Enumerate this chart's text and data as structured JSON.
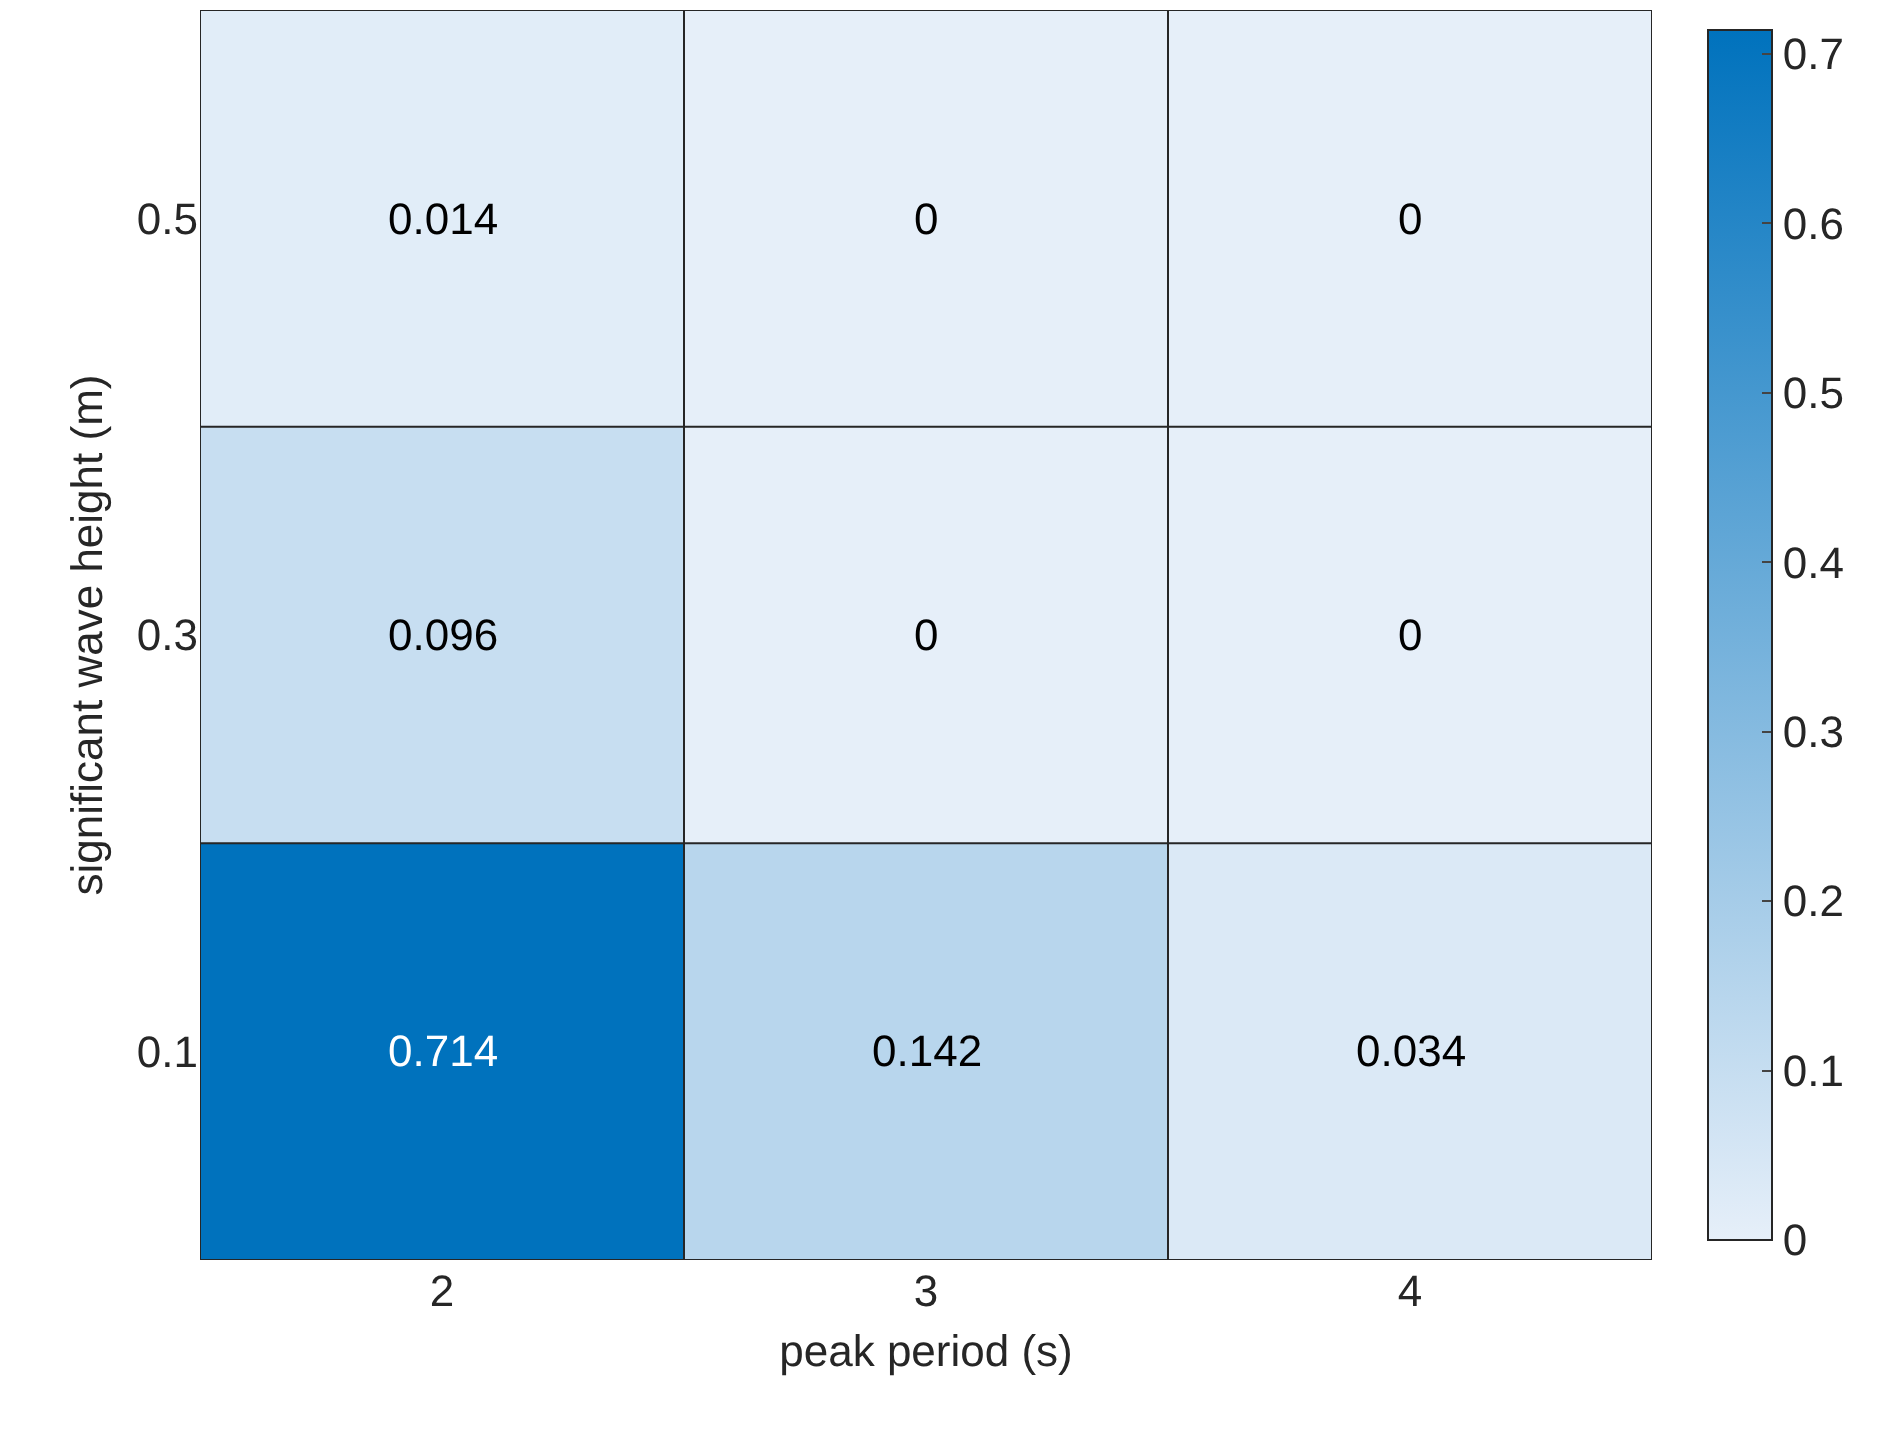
{
  "chart_data": {
    "type": "heatmap",
    "xlabel": "peak period (s)",
    "ylabel": "significant wave height (m)",
    "categories": [
      "2",
      "3",
      "4"
    ],
    "y_categories": [
      "0.5",
      "0.3",
      "0.1"
    ],
    "cells": [
      [
        0.014,
        0,
        0
      ],
      [
        0.096,
        0,
        0
      ],
      [
        0.714,
        0.142,
        0.034
      ]
    ],
    "clim": [
      0,
      0.714
    ],
    "cticks": [
      0,
      0.1,
      0.2,
      0.3,
      0.4,
      0.5,
      0.6,
      0.7
    ],
    "colors": [
      "#e6eff9",
      "#0072bd"
    ],
    "data_labels": true
  }
}
